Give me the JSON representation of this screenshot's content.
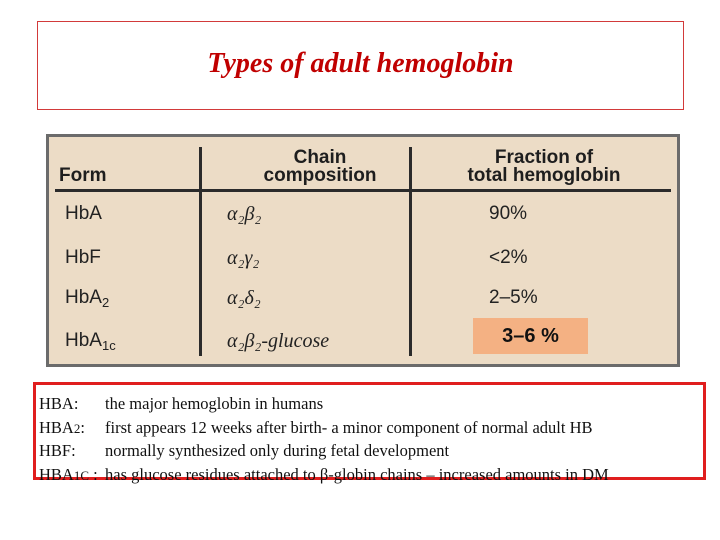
{
  "title": "Types of adult hemoglobin",
  "table": {
    "headers": {
      "form": "Form",
      "chain_line1": "Chain",
      "chain_line2": "composition",
      "fraction_line1": "Fraction of",
      "fraction_line2": "total hemoglobin"
    },
    "rows": [
      {
        "form": "HbA",
        "form_sub": "",
        "chain": "α₂β₂",
        "fraction": "90%"
      },
      {
        "form": "HbF",
        "form_sub": "",
        "chain": "α₂γ₂",
        "fraction": "<2%"
      },
      {
        "form": "HbA",
        "form_sub": "2",
        "chain": "α₂δ₂",
        "fraction": "2–5%"
      },
      {
        "form": "HbA",
        "form_sub": "1c",
        "chain": "α₂β₂-glucose",
        "fraction": ""
      }
    ],
    "highlight_value": "3–6 %",
    "colors": {
      "background": "#ecdcc6",
      "highlight": "#f4b183"
    }
  },
  "definitions": [
    {
      "term": "HBA",
      "term_small": "",
      "suffix": ":",
      "text": "the major hemoglobin in humans"
    },
    {
      "term": "HBA",
      "term_small": "2",
      "suffix": ":",
      "text": "first appears 12 weeks after birth- a minor component of normal adult HB"
    },
    {
      "term": "HBF",
      "term_small": "",
      "suffix": ":",
      "text": "normally synthesized only during fetal development"
    },
    {
      "term": "HBA",
      "term_small": "1C",
      "suffix": " :",
      "text": "has glucose residues attached to β-globin chains – increased amounts in DM"
    }
  ],
  "colors": {
    "title": "#c00000",
    "border": "#e01e1e"
  }
}
